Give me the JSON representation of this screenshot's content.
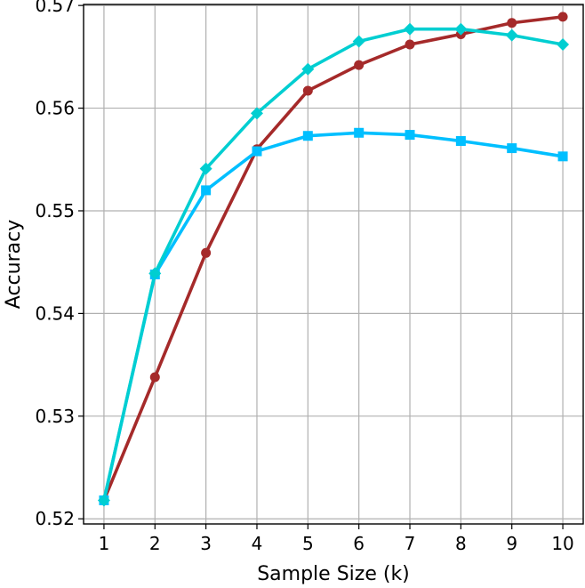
{
  "chart_data": {
    "type": "line",
    "title": "",
    "xlabel": "Sample Size (k)",
    "ylabel": "Accuracy",
    "x": [
      1,
      2,
      3,
      4,
      5,
      6,
      7,
      8,
      9,
      10
    ],
    "xticks": [
      "1",
      "2",
      "3",
      "4",
      "5",
      "6",
      "7",
      "8",
      "9",
      "10"
    ],
    "yticks": [
      "0.52",
      "0.53",
      "0.54",
      "0.55",
      "0.56",
      "0.57"
    ],
    "ytick_values": [
      0.52,
      0.53,
      0.54,
      0.55,
      0.56,
      0.57
    ],
    "xlim": [
      0.6,
      10.4
    ],
    "ylim": [
      0.5195,
      0.5701
    ],
    "grid": true,
    "legend": "none",
    "series": [
      {
        "color": "#A52A2A",
        "marker": "circle",
        "values": [
          0.5218,
          0.5338,
          0.5459,
          0.556,
          0.5617,
          0.5642,
          0.5662,
          0.5672,
          0.5683,
          0.5689
        ]
      },
      {
        "color": "#00BFFF",
        "marker": "square",
        "values": [
          0.5218,
          0.5438,
          0.552,
          0.5558,
          0.5573,
          0.5576,
          0.5574,
          0.5568,
          0.5561,
          0.5553
        ]
      },
      {
        "color": "#00CED1",
        "marker": "diamond",
        "values": [
          0.5218,
          0.5439,
          0.5541,
          0.5595,
          0.5638,
          0.5665,
          0.5677,
          0.5677,
          0.5671,
          0.5662
        ]
      }
    ]
  }
}
